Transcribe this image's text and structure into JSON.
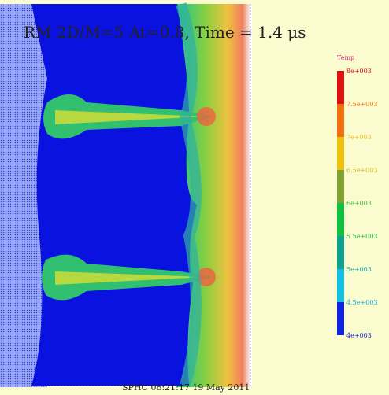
{
  "header": {
    "title": "RM 2D/M=5 At=0.8, Time = 1.4 μs"
  },
  "colorbar": {
    "title": "Temp",
    "labels": [
      "8e+003",
      "7.5e+003",
      "7e+003",
      "6.5e+003",
      "6e+003",
      "5.5e+003",
      "5e+003",
      "4.5e+003",
      "4e+003"
    ]
  },
  "footer": {
    "text": "SPHC 08:21:17 19 May 2011"
  }
}
